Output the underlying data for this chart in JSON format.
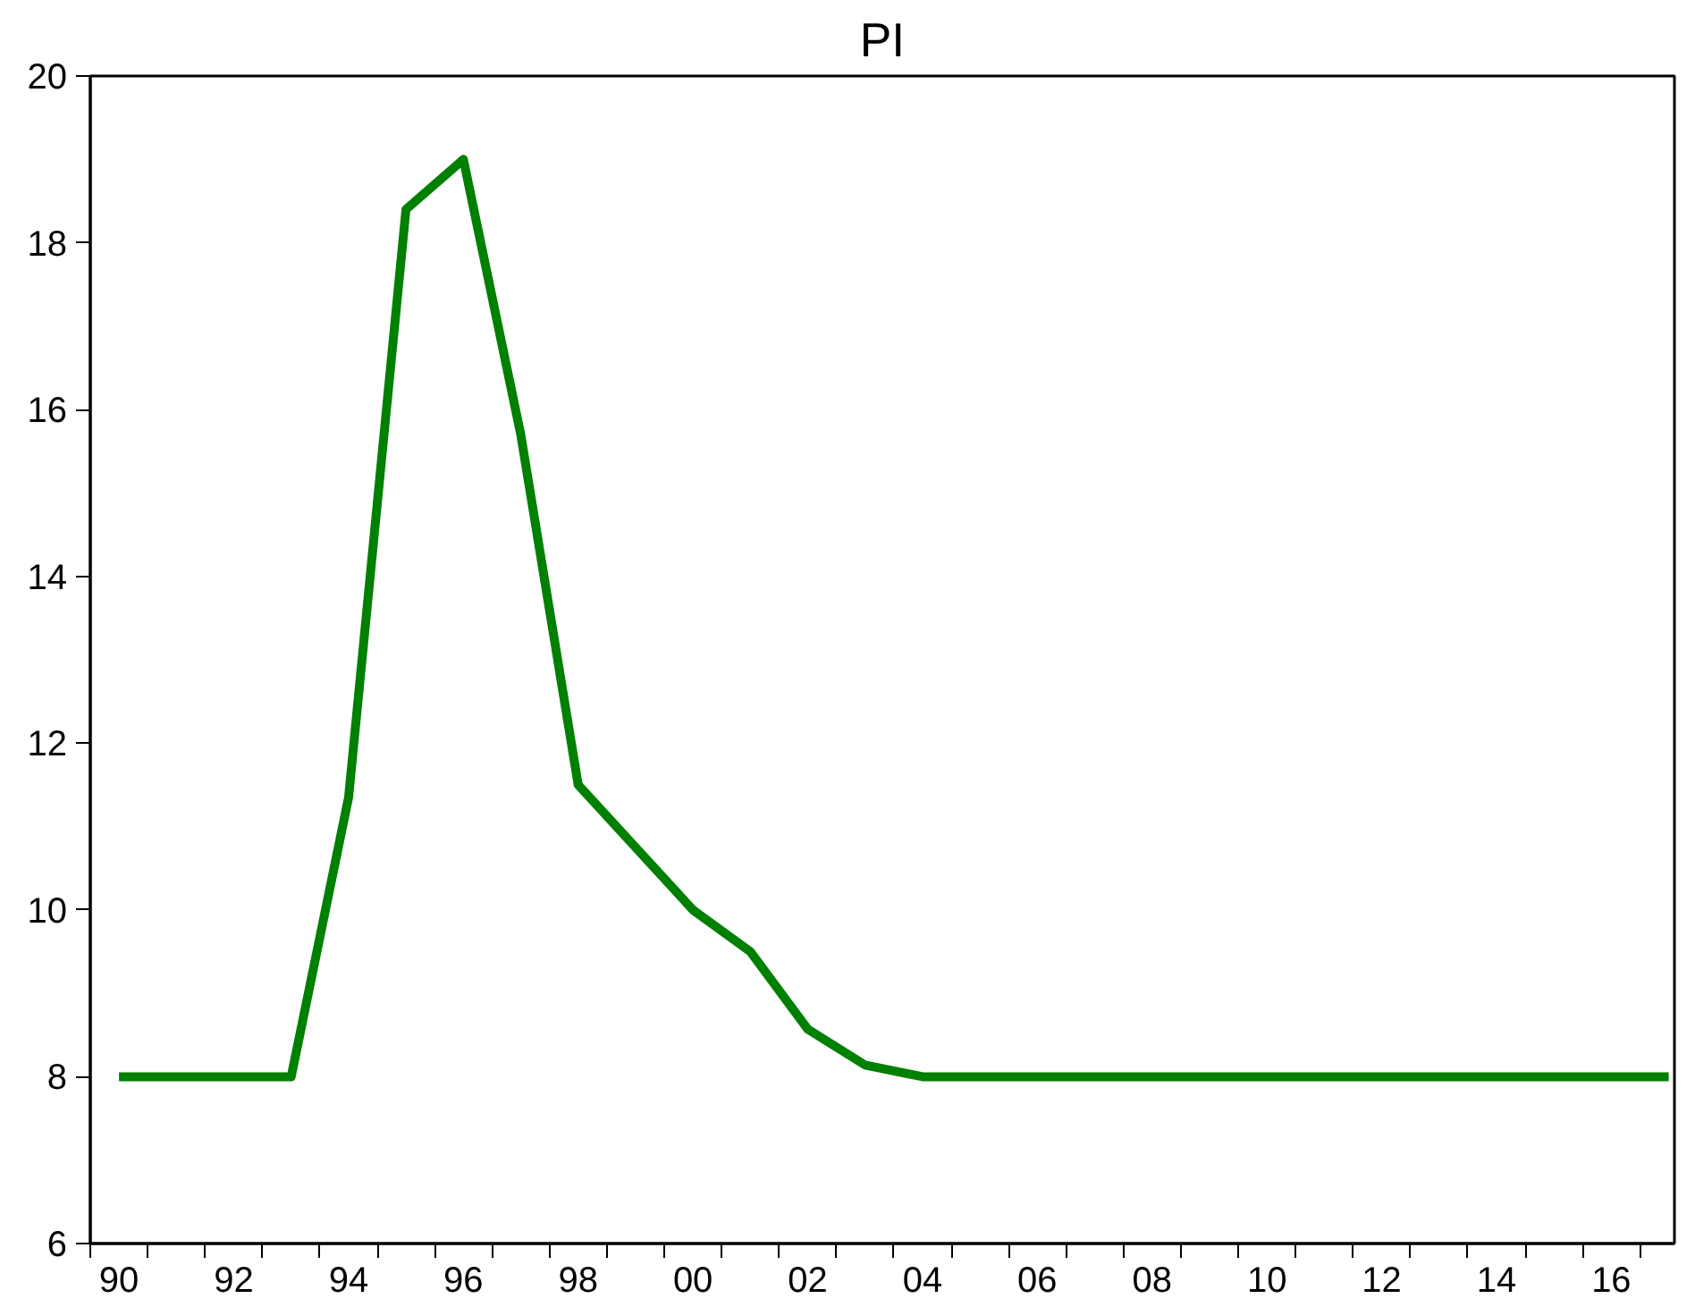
{
  "chart_data": {
    "type": "line",
    "title": "PI",
    "x": [
      1990,
      1991,
      1992,
      1993,
      1994,
      1995,
      1996,
      1997,
      1998,
      1999,
      2000,
      2001,
      2002,
      2003,
      2004,
      2005,
      2006,
      2007,
      2008,
      2009,
      2010,
      2011,
      2012,
      2013,
      2014,
      2015,
      2016,
      2017
    ],
    "series": [
      {
        "color": "#008000",
        "values": [
          8,
          8,
          8,
          8,
          11.35,
          18.4,
          19.0,
          15.7,
          11.5,
          10.75,
          10.0,
          9.5,
          8.57,
          8.14,
          8.0,
          8,
          8,
          8,
          8,
          8,
          8,
          8,
          8,
          8,
          8,
          8,
          8,
          8
        ]
      }
    ],
    "xlim": [
      1989.5,
      2017.1
    ],
    "xticks": [
      {
        "value": 1990,
        "label": "90"
      },
      {
        "value": 1992,
        "label": "92"
      },
      {
        "value": 1994,
        "label": "94"
      },
      {
        "value": 1996,
        "label": "96"
      },
      {
        "value": 1998,
        "label": "98"
      },
      {
        "value": 2000,
        "label": "00"
      },
      {
        "value": 2002,
        "label": "02"
      },
      {
        "value": 2004,
        "label": "04"
      },
      {
        "value": 2006,
        "label": "06"
      },
      {
        "value": 2008,
        "label": "08"
      },
      {
        "value": 2010,
        "label": "10"
      },
      {
        "value": 2012,
        "label": "12"
      },
      {
        "value": 2014,
        "label": "14"
      },
      {
        "value": 2016,
        "label": "16"
      },
      {
        "value": 1989.5,
        "label": null
      },
      {
        "value": 1990.5,
        "label": null
      },
      {
        "value": 1991.5,
        "label": null
      },
      {
        "value": 1992.5,
        "label": null
      },
      {
        "value": 1993.5,
        "label": null
      },
      {
        "value": 1994.5,
        "label": null
      },
      {
        "value": 1995.5,
        "label": null
      },
      {
        "value": 1996.5,
        "label": null
      },
      {
        "value": 1997.5,
        "label": null
      },
      {
        "value": 1998.5,
        "label": null
      },
      {
        "value": 1999.5,
        "label": null
      },
      {
        "value": 2000.5,
        "label": null
      },
      {
        "value": 2001.5,
        "label": null
      },
      {
        "value": 2002.5,
        "label": null
      },
      {
        "value": 2003.5,
        "label": null
      },
      {
        "value": 2004.5,
        "label": null
      },
      {
        "value": 2005.5,
        "label": null
      },
      {
        "value": 2006.5,
        "label": null
      },
      {
        "value": 2007.5,
        "label": null
      },
      {
        "value": 2008.5,
        "label": null
      },
      {
        "value": 2009.5,
        "label": null
      },
      {
        "value": 2010.5,
        "label": null
      },
      {
        "value": 2011.5,
        "label": null
      },
      {
        "value": 2012.5,
        "label": null
      },
      {
        "value": 2013.5,
        "label": null
      },
      {
        "value": 2014.5,
        "label": null
      },
      {
        "value": 2015.5,
        "label": null
      },
      {
        "value": 2016.5,
        "label": null
      }
    ],
    "ylim": [
      6,
      20
    ],
    "yticks": [
      6,
      8,
      10,
      12,
      14,
      16,
      18,
      20
    ],
    "grid": false,
    "marker": "none",
    "line_style": "solid"
  }
}
